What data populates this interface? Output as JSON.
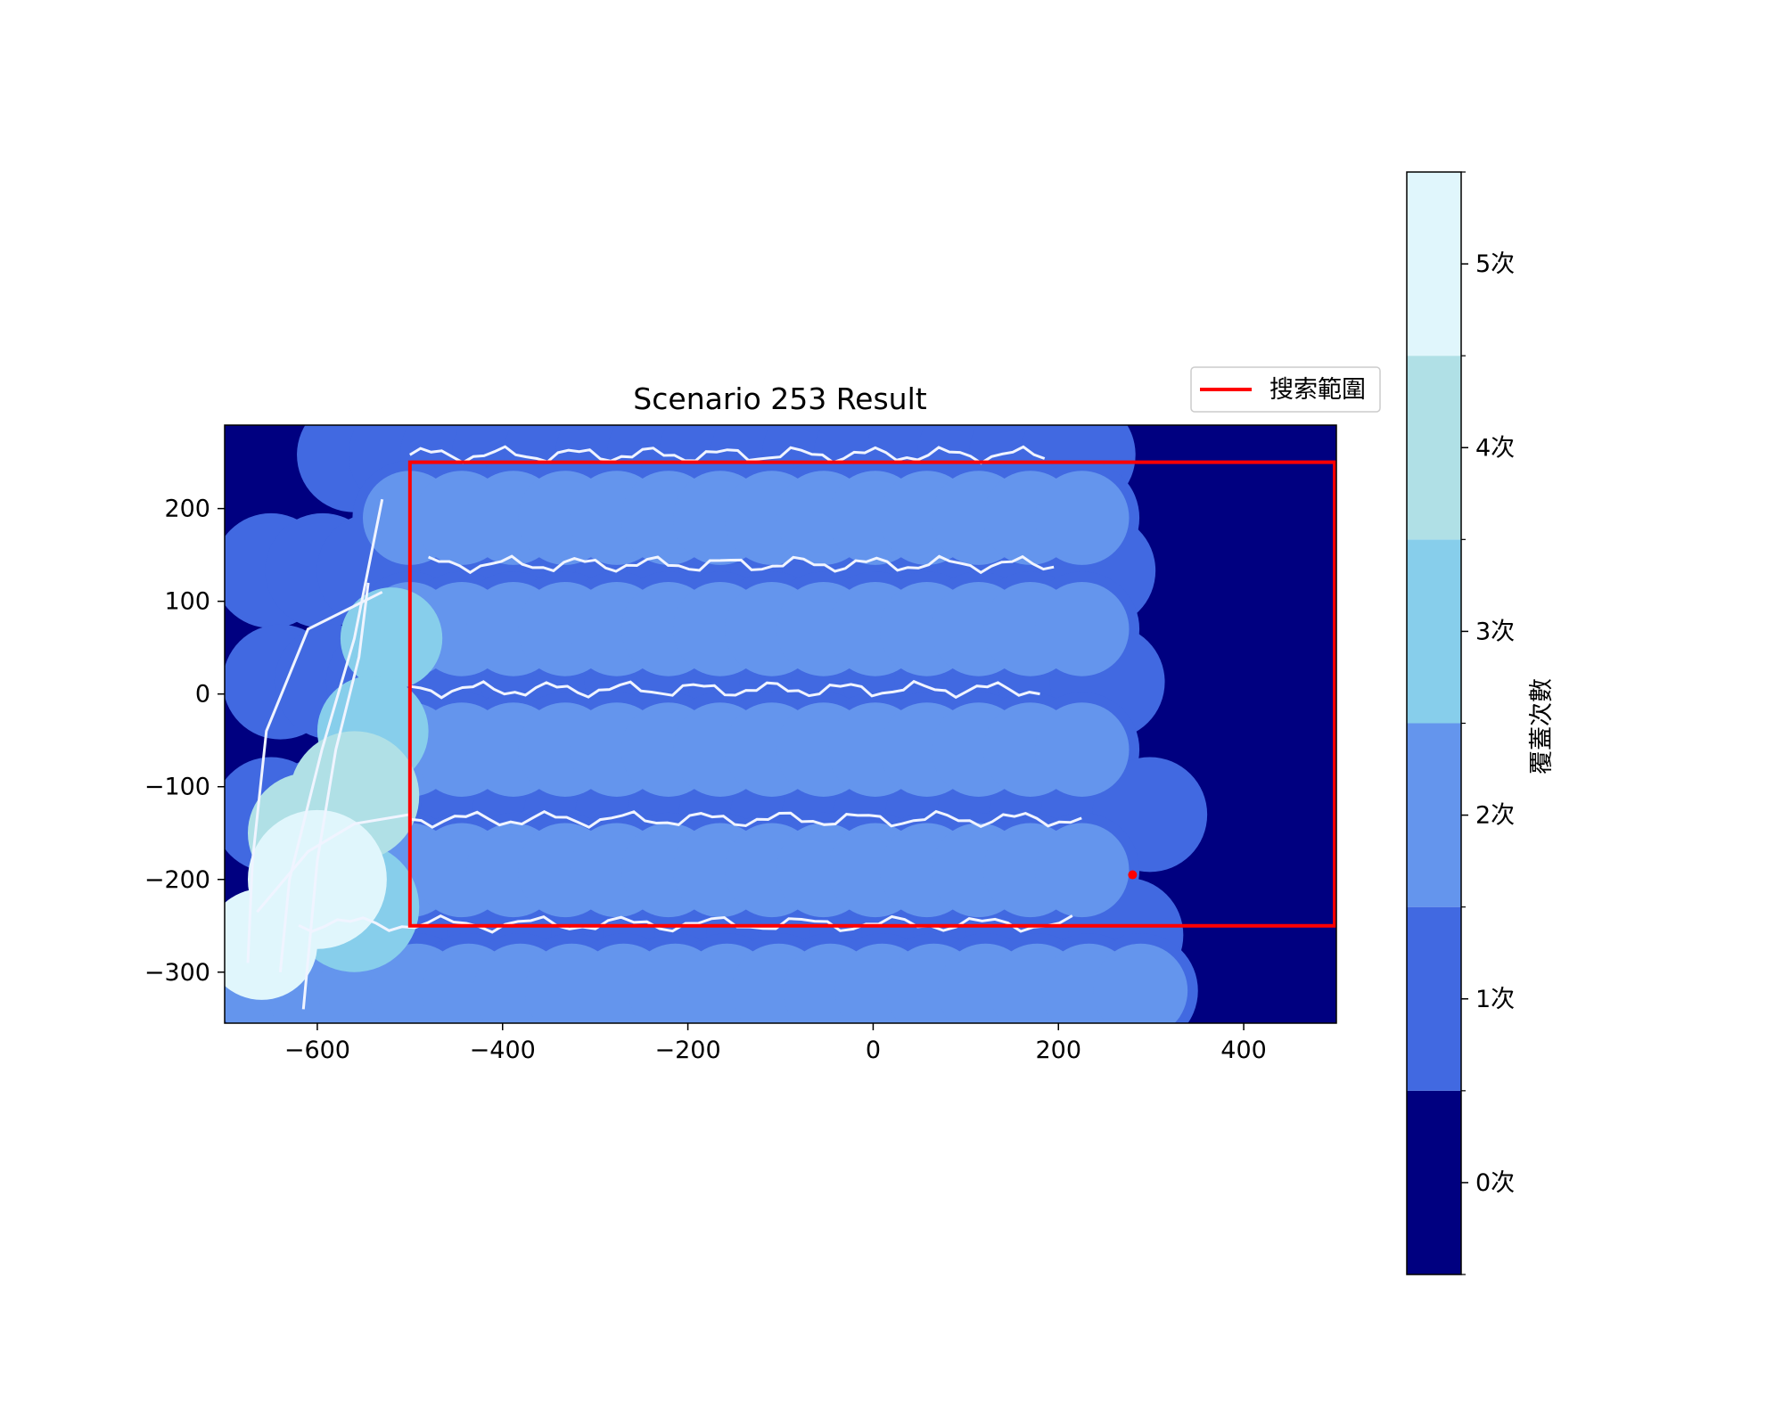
{
  "chart_data": {
    "type": "heatmap",
    "title": "Scenario 253 Result",
    "xlabel": "",
    "ylabel": "",
    "xlim": [
      -700,
      500
    ],
    "ylim": [
      -355,
      290
    ],
    "x_ticks": [
      -600,
      -400,
      -200,
      0,
      200,
      400
    ],
    "x_tick_labels": [
      "−600",
      "−400",
      "−200",
      "0",
      "200",
      "400"
    ],
    "y_ticks": [
      -300,
      -200,
      -100,
      0,
      100,
      200
    ],
    "y_tick_labels": [
      "−300",
      "−200",
      "−100",
      "0",
      "100",
      "200"
    ],
    "grid": false,
    "legend": {
      "placement": "top-right, outside axes",
      "entries": [
        {
          "label": "搜索範圍",
          "color": "#ff0000"
        }
      ]
    },
    "search_area": {
      "x": [
        -500,
        500
      ],
      "y": [
        -250,
        250
      ],
      "color": "#ff0000"
    },
    "target_marker": {
      "x": 280,
      "y": -195,
      "color": "#ff0000"
    },
    "colorbar": {
      "label": "覆蓋次數",
      "levels": [
        {
          "label": "0次",
          "value": 0,
          "color": "#000080"
        },
        {
          "label": "1次",
          "value": 1,
          "color": "#4169e1"
        },
        {
          "label": "2次",
          "value": 2,
          "color": "#6495ed"
        },
        {
          "label": "3次",
          "value": 3,
          "color": "#87ceeb"
        },
        {
          "label": "4次",
          "value": 4,
          "color": "#b0e0e6"
        },
        {
          "label": "5次",
          "value": 5,
          "color": "#e0f6fc"
        }
      ]
    },
    "coverage_radius": 62,
    "coverage_sweeps": [
      {
        "y": 258,
        "x_start": -560,
        "x_end": 275
      },
      {
        "y": 190,
        "x_start": -500,
        "x_end": 240
      },
      {
        "y": 133,
        "x_start": -650,
        "x_end": 290
      },
      {
        "y": 70,
        "x_start": -500,
        "x_end": 260
      },
      {
        "y": 13,
        "x_start": -640,
        "x_end": 280
      },
      {
        "y": -60,
        "x_start": -500,
        "x_end": 270
      },
      {
        "y": -130,
        "x_start": -650,
        "x_end": 320
      },
      {
        "y": -190,
        "x_start": -500,
        "x_end": 260
      },
      {
        "y": -260,
        "x_start": -620,
        "x_end": 315
      },
      {
        "y": -320,
        "x_start": -660,
        "x_end": 300
      }
    ],
    "coverage_extra": [
      {
        "x": -600,
        "y": -200,
        "r": 75,
        "level": 5
      },
      {
        "x": -660,
        "y": -270,
        "r": 60,
        "level": 5
      },
      {
        "x": -560,
        "y": -110,
        "r": 70,
        "level": 4
      },
      {
        "x": -610,
        "y": -150,
        "r": 65,
        "level": 4
      },
      {
        "x": -520,
        "y": 60,
        "r": 55,
        "level": 3
      },
      {
        "x": -540,
        "y": -40,
        "r": 60,
        "level": 3
      },
      {
        "x": -560,
        "y": -230,
        "r": 70,
        "level": 3
      }
    ],
    "paths": [
      {
        "y": 258,
        "x_start": -500,
        "x_end": 185
      },
      {
        "y": 140,
        "x_start": -480,
        "x_end": 195
      },
      {
        "y": 5,
        "x_start": -500,
        "x_end": 180
      },
      {
        "y": -135,
        "x_start": -500,
        "x_end": 225
      },
      {
        "y": -248,
        "x_start": -620,
        "x_end": 215
      }
    ],
    "vertical_paths": [
      {
        "points": [
          [
            -545,
            120
          ],
          [
            -555,
            40
          ],
          [
            -580,
            -60
          ],
          [
            -600,
            -180
          ],
          [
            -615,
            -340
          ]
        ]
      },
      {
        "points": [
          [
            -530,
            210
          ],
          [
            -540,
            160
          ],
          [
            -560,
            60
          ],
          [
            -595,
            -60
          ],
          [
            -630,
            -200
          ],
          [
            -640,
            -300
          ]
        ]
      },
      {
        "points": [
          [
            -530,
            110
          ],
          [
            -610,
            70
          ],
          [
            -655,
            -40
          ],
          [
            -670,
            -180
          ],
          [
            -675,
            -290
          ]
        ]
      },
      {
        "points": [
          [
            -500,
            -130
          ],
          [
            -560,
            -140
          ],
          [
            -610,
            -170
          ],
          [
            -665,
            -235
          ]
        ]
      }
    ]
  }
}
